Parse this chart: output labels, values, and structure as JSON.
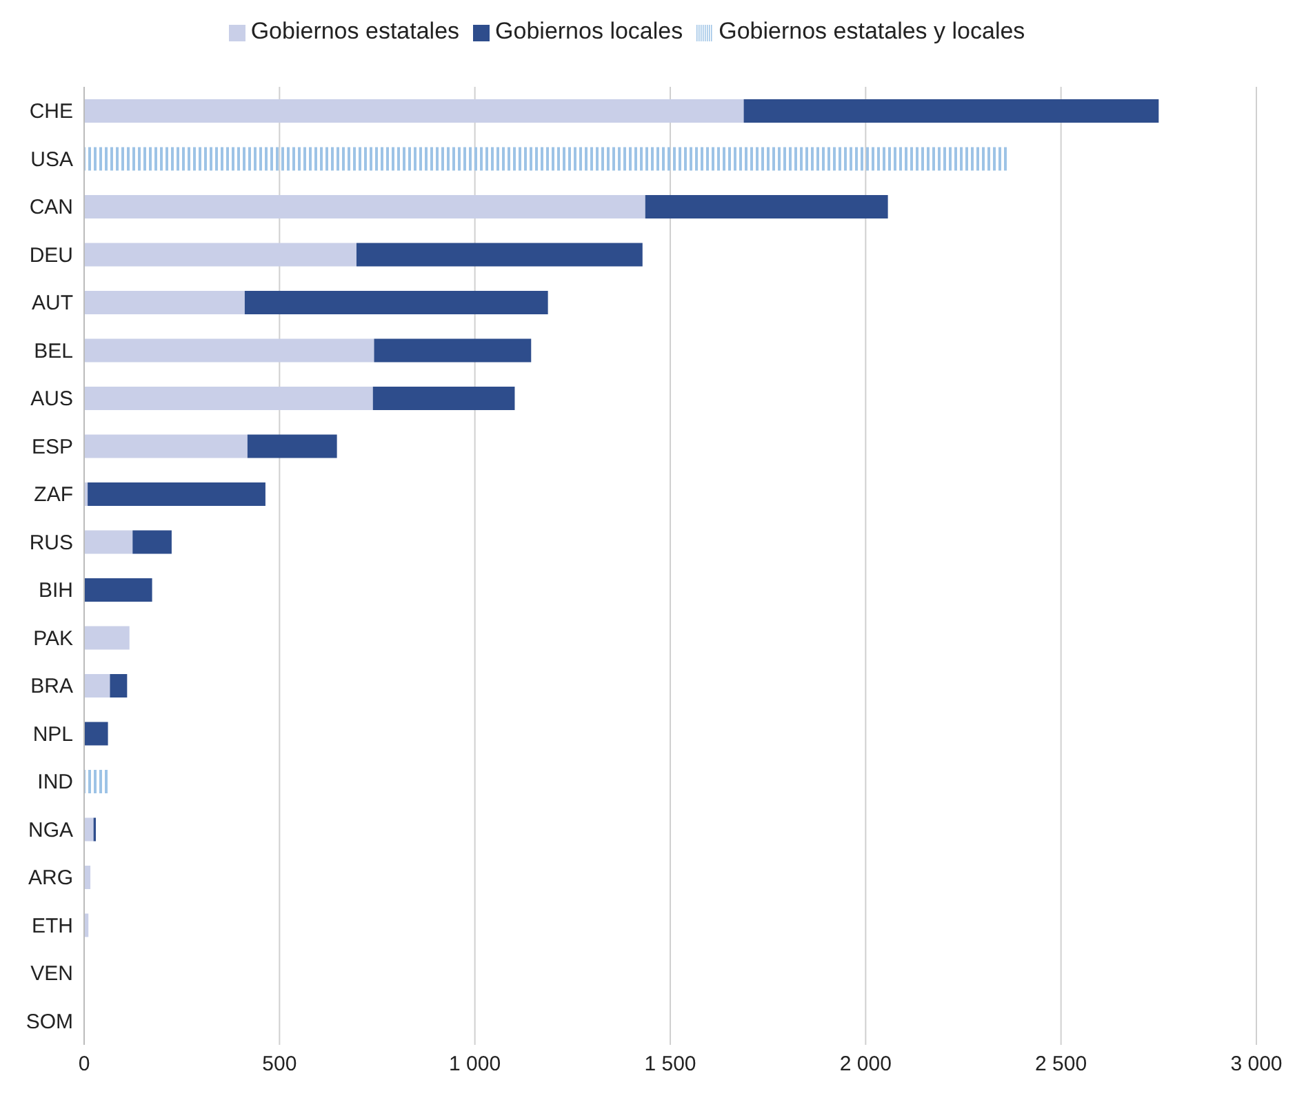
{
  "chart_data": {
    "type": "bar",
    "orientation": "horizontal",
    "stacked": true,
    "categories": [
      "CHE",
      "USA",
      "CAN",
      "DEU",
      "AUT",
      "BEL",
      "AUS",
      "ESP",
      "ZAF",
      "RUS",
      "BIH",
      "PAK",
      "BRA",
      "NPL",
      "IND",
      "NGA",
      "ARG",
      "ETH",
      "VEN",
      "SOM"
    ],
    "series": [
      {
        "name": "Gobiernos estatales",
        "color": "#c9cfe8",
        "values": [
          1688,
          null,
          1436,
          697,
          411,
          742,
          739,
          418,
          9,
          124,
          0,
          116,
          66,
          0,
          null,
          24,
          16,
          11,
          0,
          0
        ]
      },
      {
        "name": "Gobiernos locales",
        "color": "#2e4d8c",
        "values": [
          1062,
          null,
          621,
          732,
          776,
          402,
          363,
          229,
          455,
          100,
          174,
          null,
          44,
          61,
          null,
          6,
          null,
          null,
          0,
          0
        ]
      },
      {
        "name": "Gobiernos estatales y locales",
        "color": "#9dc3e6",
        "values": [
          null,
          2365,
          null,
          null,
          null,
          null,
          null,
          null,
          null,
          null,
          null,
          null,
          null,
          null,
          62,
          null,
          null,
          null,
          null,
          null
        ]
      }
    ],
    "xlim": [
      0,
      3000
    ],
    "xticks": [
      0,
      {
        "value": 500,
        "label": "500"
      },
      {
        "value": 1000,
        "label": "1 000"
      },
      {
        "value": 1500,
        "label": "1 500"
      },
      {
        "value": 2000,
        "label": "2 000"
      },
      {
        "value": 2500,
        "label": "2 500"
      },
      {
        "value": 3000,
        "label": "3 000"
      }
    ],
    "grid": "x",
    "legend": "top"
  }
}
